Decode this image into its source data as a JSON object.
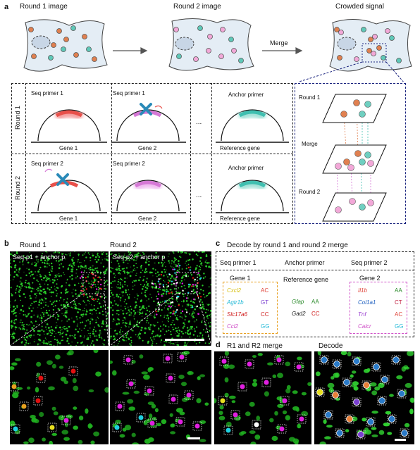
{
  "panel_a": {
    "label": "a",
    "cell_titles": [
      "Round 1 image",
      "Round 2 image",
      "Crowded signal"
    ],
    "merge_label": "Merge",
    "round_labels": [
      "Round 1",
      "Round 2"
    ],
    "row1": {
      "primer_labels": [
        "Seq primer 1",
        "Seq primer 1",
        "Anchor primer"
      ],
      "gene_labels": [
        "Gene 1",
        "Gene 2",
        "Reference gene"
      ]
    },
    "row2": {
      "primer_labels": [
        "Seq primer 2",
        "Seq primer 2",
        "Anchor primer"
      ],
      "gene_labels": [
        "Gene 1",
        "Gene 2",
        "Reference gene"
      ]
    },
    "ellipsis": "...",
    "stack_labels": [
      "Round 1",
      "Merge",
      "Round 2"
    ]
  },
  "panel_b": {
    "label": "b",
    "titles": [
      "Round 1",
      "Round 2"
    ],
    "overlays": [
      "Seq-p1 + anchor p",
      "Seq-p2 + anchor p"
    ]
  },
  "panel_c": {
    "label": "c",
    "title": "Decode by round 1 and round 2 merge",
    "headers": [
      "Seq primer 1",
      "Anchor primer",
      "Seq primer 2"
    ],
    "gene1_title": "Gene 1",
    "reference_title": "Reference gene",
    "gene2_title": "Gene 2",
    "gene1": [
      {
        "name": "Cxcl2",
        "code": "AC",
        "color": "#d8c21a",
        "code_color": "#e0443a"
      },
      {
        "name": "Agtr1b",
        "code": "GT",
        "color": "#1fb8d6",
        "code_color": "#7a3fd0"
      },
      {
        "name": "Slc17a6",
        "code": "CC",
        "color": "#d02020",
        "code_color": "#d02020"
      },
      {
        "name": "Ccl2",
        "code": "GG",
        "color": "#d050c8",
        "code_color": "#1fb8d6"
      }
    ],
    "reference": [
      {
        "name": "Gfap",
        "code": "AA",
        "color": "#2a8a2a",
        "code_color": "#2a8a2a"
      },
      {
        "name": "Gad2",
        "code": "CC",
        "color": "#222222",
        "code_color": "#d02020"
      }
    ],
    "gene2": [
      {
        "name": "Il1b",
        "code": "AA",
        "color": "#e0443a",
        "code_color": "#2a8a2a"
      },
      {
        "name": "Col1a1",
        "code": "CT",
        "color": "#2060c0",
        "code_color": "#c02040"
      },
      {
        "name": "Tnf",
        "code": "AC",
        "color": "#9a3fd0",
        "code_color": "#e0443a"
      },
      {
        "name": "Calcr",
        "code": "GG",
        "color": "#d050c8",
        "code_color": "#1fb8d6"
      }
    ]
  },
  "panel_d": {
    "label": "d",
    "titles": [
      "R1 and R2 merge",
      "Decode"
    ]
  },
  "colors": {
    "gene_red": "#e8504a",
    "gene_pink": "#d678d6",
    "gene_teal": "#3fbfb0",
    "cross_blue": "#2a8ab8",
    "cell_fill": "#e4edf5",
    "spot_green": "#28d028",
    "spot_magenta": "#e020e0",
    "spot_red": "#e01010",
    "spot_cyan": "#20d0e0",
    "spot_yellow": "#e8e020"
  }
}
